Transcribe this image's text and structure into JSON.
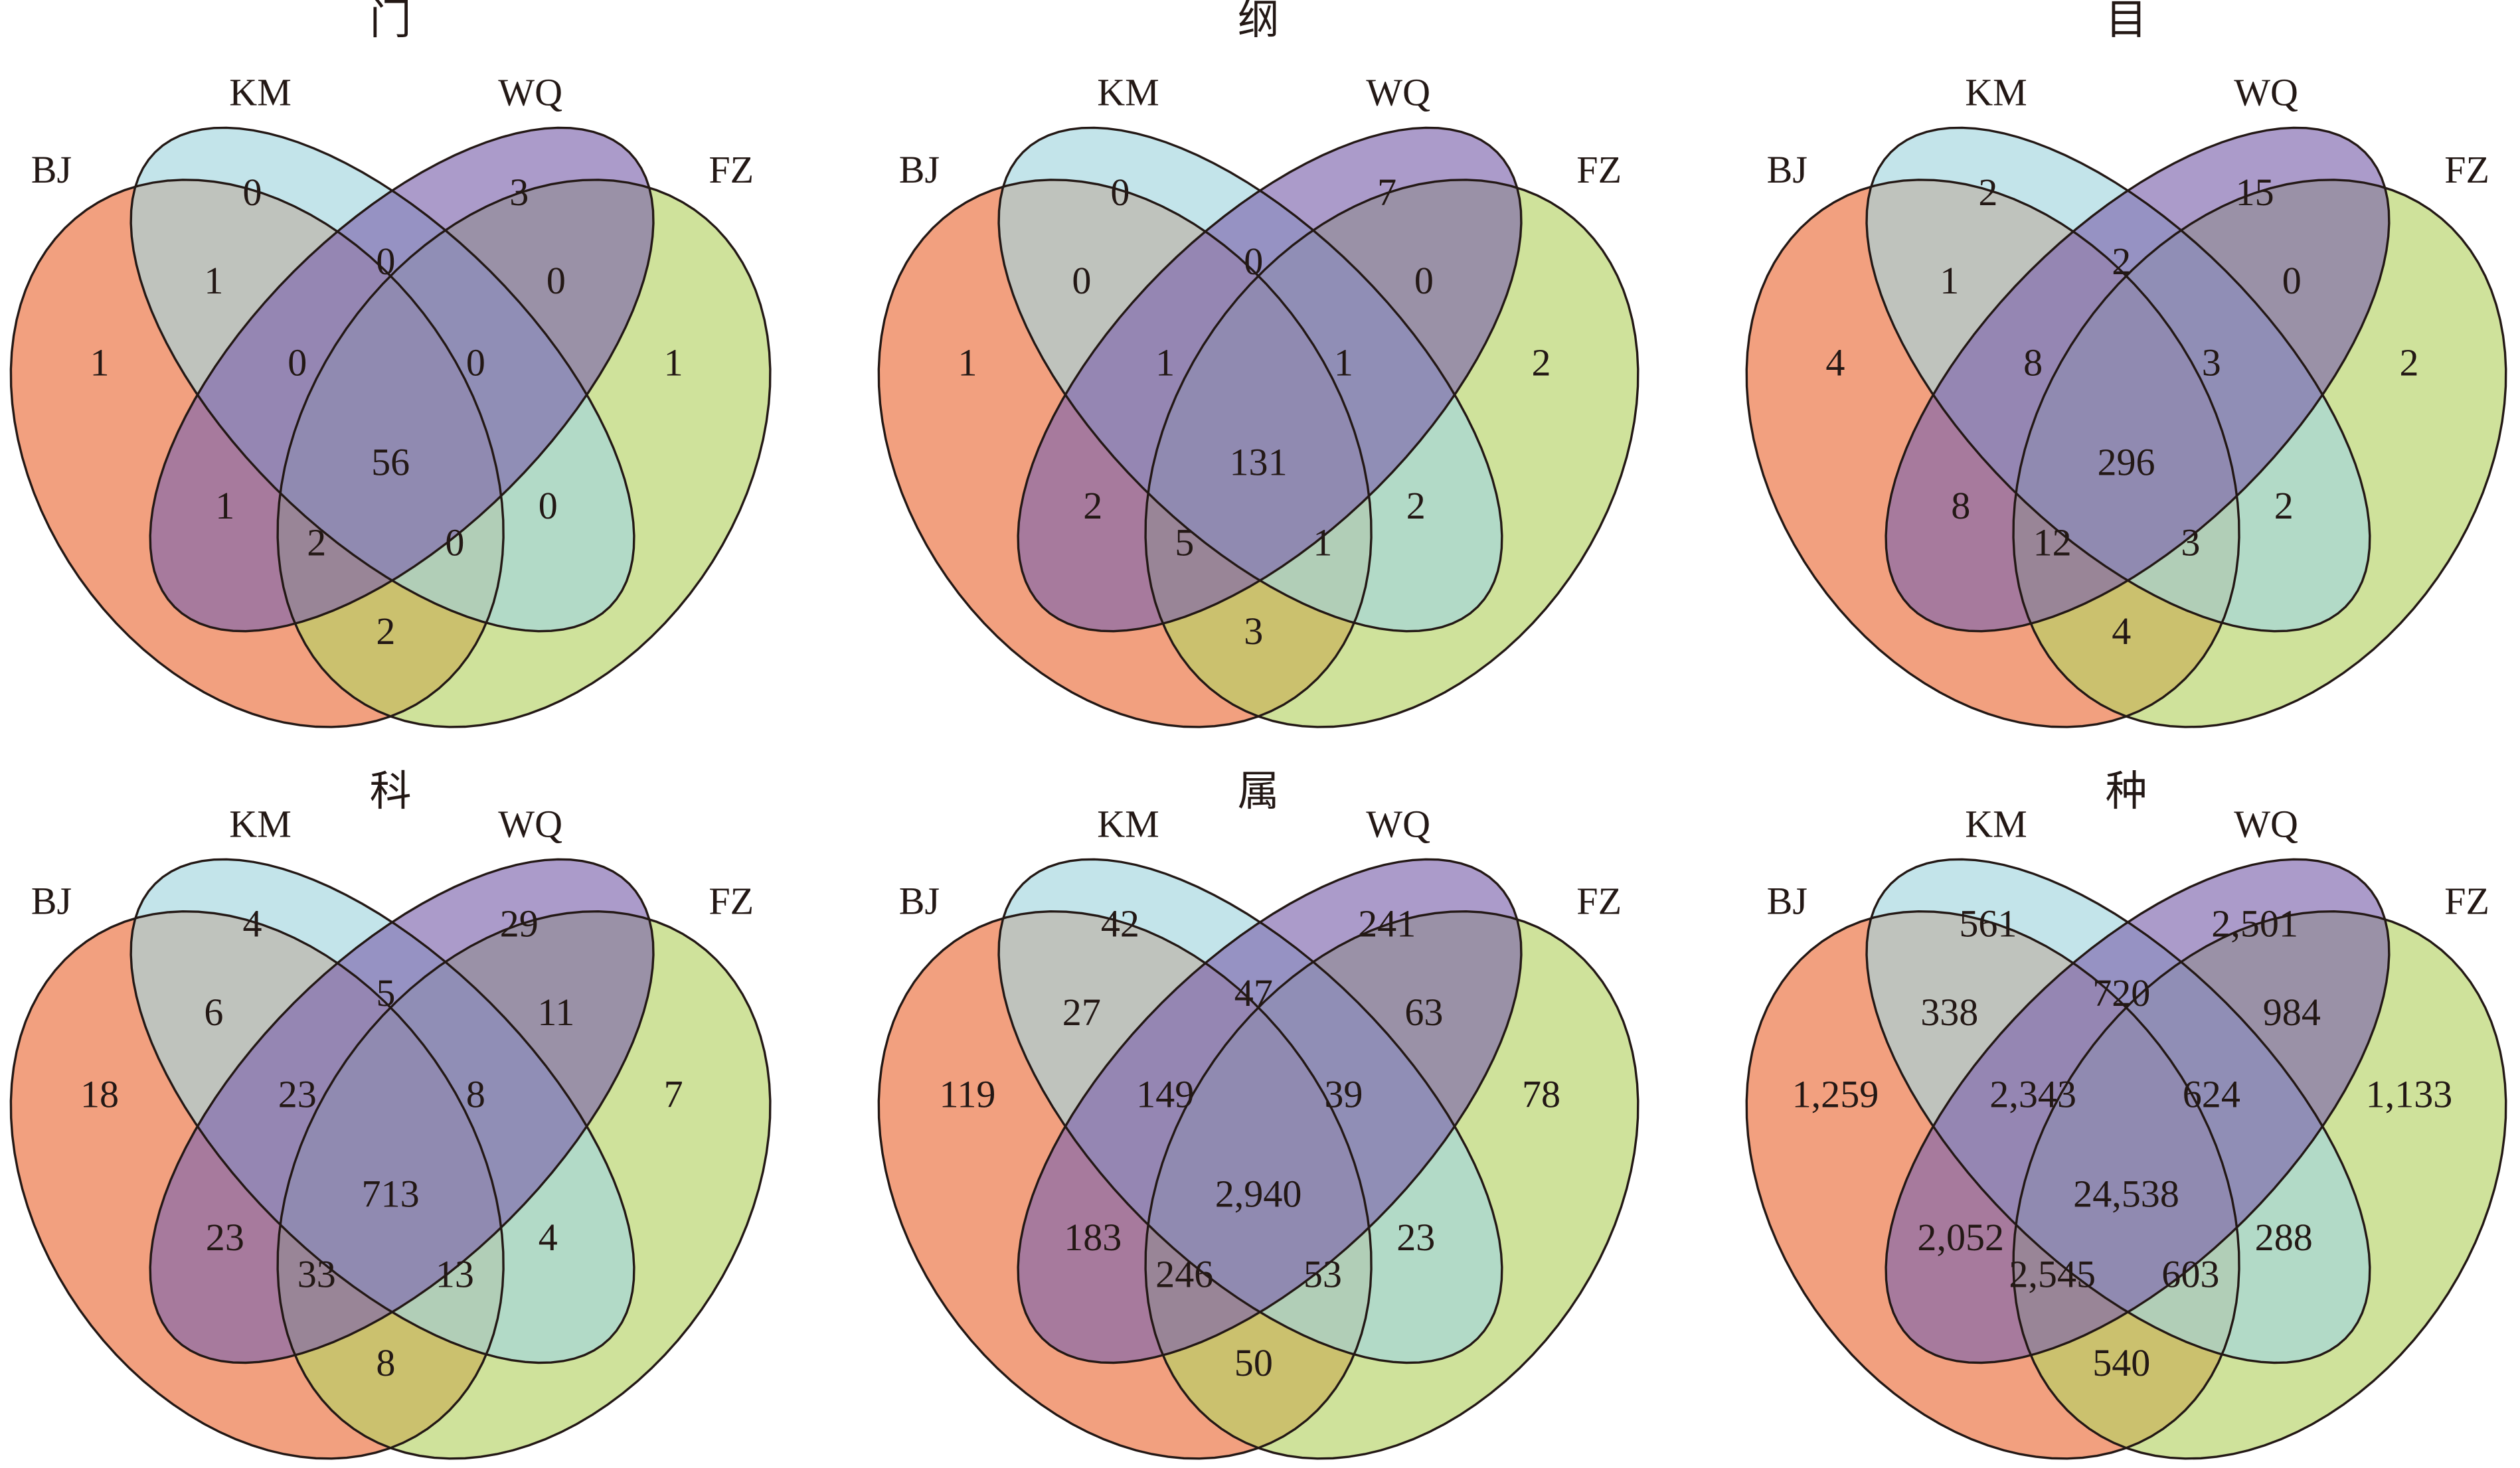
{
  "chart_data": {
    "type": "venn",
    "set_colors": {
      "BJ": "#eb6d3a",
      "KM": "#a3d6df",
      "WQ": "#7e65ae",
      "FZ": "#b5d365"
    },
    "panels": [
      {
        "title": "门",
        "sets": [
          "BJ",
          "KM",
          "WQ",
          "FZ"
        ],
        "regions": [
          {
            "sets": "KM",
            "value": 0
          },
          {
            "sets": "WQ",
            "value": 3
          },
          {
            "sets": "KM&WQ",
            "value": 0
          },
          {
            "sets": "BJ&KM",
            "value": 1
          },
          {
            "sets": "WQ&FZ",
            "value": 0
          },
          {
            "sets": "BJ",
            "value": 1
          },
          {
            "sets": "FZ",
            "value": 1
          },
          {
            "sets": "BJ&KM&WQ",
            "value": 0
          },
          {
            "sets": "KM&WQ&FZ",
            "value": 0
          },
          {
            "sets": "BJ&KM&WQ&FZ",
            "value": 56
          },
          {
            "sets": "BJ&WQ",
            "value": 1
          },
          {
            "sets": "KM&FZ",
            "value": 0
          },
          {
            "sets": "BJ&WQ&FZ",
            "value": 2
          },
          {
            "sets": "BJ&KM&FZ",
            "value": 0
          },
          {
            "sets": "BJ&FZ",
            "value": 2
          }
        ]
      },
      {
        "title": "纲",
        "sets": [
          "BJ",
          "KM",
          "WQ",
          "FZ"
        ],
        "regions": [
          {
            "sets": "KM",
            "value": 0
          },
          {
            "sets": "WQ",
            "value": 7
          },
          {
            "sets": "KM&WQ",
            "value": 0
          },
          {
            "sets": "BJ&KM",
            "value": 0
          },
          {
            "sets": "WQ&FZ",
            "value": 0
          },
          {
            "sets": "BJ",
            "value": 1
          },
          {
            "sets": "FZ",
            "value": 2
          },
          {
            "sets": "BJ&KM&WQ",
            "value": 1
          },
          {
            "sets": "KM&WQ&FZ",
            "value": 1
          },
          {
            "sets": "BJ&KM&WQ&FZ",
            "value": 131
          },
          {
            "sets": "BJ&WQ",
            "value": 2
          },
          {
            "sets": "KM&FZ",
            "value": 2
          },
          {
            "sets": "BJ&WQ&FZ",
            "value": 5
          },
          {
            "sets": "BJ&KM&FZ",
            "value": 1
          },
          {
            "sets": "BJ&FZ",
            "value": 3
          }
        ]
      },
      {
        "title": "目",
        "sets": [
          "BJ",
          "KM",
          "WQ",
          "FZ"
        ],
        "regions": [
          {
            "sets": "KM",
            "value": 2
          },
          {
            "sets": "WQ",
            "value": 15
          },
          {
            "sets": "KM&WQ",
            "value": 2
          },
          {
            "sets": "BJ&KM",
            "value": 1
          },
          {
            "sets": "WQ&FZ",
            "value": 0
          },
          {
            "sets": "BJ",
            "value": 4
          },
          {
            "sets": "FZ",
            "value": 2
          },
          {
            "sets": "BJ&KM&WQ",
            "value": 8
          },
          {
            "sets": "KM&WQ&FZ",
            "value": 3
          },
          {
            "sets": "BJ&KM&WQ&FZ",
            "value": 296
          },
          {
            "sets": "BJ&WQ",
            "value": 8
          },
          {
            "sets": "KM&FZ",
            "value": 2
          },
          {
            "sets": "BJ&WQ&FZ",
            "value": 12
          },
          {
            "sets": "BJ&KM&FZ",
            "value": 3
          },
          {
            "sets": "BJ&FZ",
            "value": 4
          }
        ]
      },
      {
        "title": "科",
        "sets": [
          "BJ",
          "KM",
          "WQ",
          "FZ"
        ],
        "regions": [
          {
            "sets": "KM",
            "value": 4
          },
          {
            "sets": "WQ",
            "value": 29
          },
          {
            "sets": "KM&WQ",
            "value": 5
          },
          {
            "sets": "BJ&KM",
            "value": 6
          },
          {
            "sets": "WQ&FZ",
            "value": 11
          },
          {
            "sets": "BJ",
            "value": 18
          },
          {
            "sets": "FZ",
            "value": 7
          },
          {
            "sets": "BJ&KM&WQ",
            "value": 23
          },
          {
            "sets": "KM&WQ&FZ",
            "value": 8
          },
          {
            "sets": "BJ&KM&WQ&FZ",
            "value": 713
          },
          {
            "sets": "BJ&WQ",
            "value": 23
          },
          {
            "sets": "KM&FZ",
            "value": 4
          },
          {
            "sets": "BJ&WQ&FZ",
            "value": 33
          },
          {
            "sets": "BJ&KM&FZ",
            "value": 13
          },
          {
            "sets": "BJ&FZ",
            "value": 8
          }
        ]
      },
      {
        "title": "属",
        "sets": [
          "BJ",
          "KM",
          "WQ",
          "FZ"
        ],
        "regions": [
          {
            "sets": "KM",
            "value": 42
          },
          {
            "sets": "WQ",
            "value": 241
          },
          {
            "sets": "KM&WQ",
            "value": 47
          },
          {
            "sets": "BJ&KM",
            "value": 27
          },
          {
            "sets": "WQ&FZ",
            "value": 63
          },
          {
            "sets": "BJ",
            "value": 119
          },
          {
            "sets": "FZ",
            "value": 78
          },
          {
            "sets": "BJ&KM&WQ",
            "value": 149
          },
          {
            "sets": "KM&WQ&FZ",
            "value": 39
          },
          {
            "sets": "BJ&KM&WQ&FZ",
            "value": 2940
          },
          {
            "sets": "BJ&WQ",
            "value": 183
          },
          {
            "sets": "KM&FZ",
            "value": 23
          },
          {
            "sets": "BJ&WQ&FZ",
            "value": 246
          },
          {
            "sets": "BJ&KM&FZ",
            "value": 53
          },
          {
            "sets": "BJ&FZ",
            "value": 50
          }
        ]
      },
      {
        "title": "种",
        "sets": [
          "BJ",
          "KM",
          "WQ",
          "FZ"
        ],
        "regions": [
          {
            "sets": "KM",
            "value": 561
          },
          {
            "sets": "WQ",
            "value": 2501
          },
          {
            "sets": "KM&WQ",
            "value": 720
          },
          {
            "sets": "BJ&KM",
            "value": 338
          },
          {
            "sets": "WQ&FZ",
            "value": 984
          },
          {
            "sets": "BJ",
            "value": 1259
          },
          {
            "sets": "FZ",
            "value": 1133
          },
          {
            "sets": "BJ&KM&WQ",
            "value": 2343
          },
          {
            "sets": "KM&WQ&FZ",
            "value": 624
          },
          {
            "sets": "BJ&KM&WQ&FZ",
            "value": 24538
          },
          {
            "sets": "BJ&WQ",
            "value": 2052
          },
          {
            "sets": "KM&FZ",
            "value": 288
          },
          {
            "sets": "BJ&WQ&FZ",
            "value": 2545
          },
          {
            "sets": "BJ&KM&FZ",
            "value": 603
          },
          {
            "sets": "BJ&FZ",
            "value": 540
          }
        ]
      }
    ]
  }
}
